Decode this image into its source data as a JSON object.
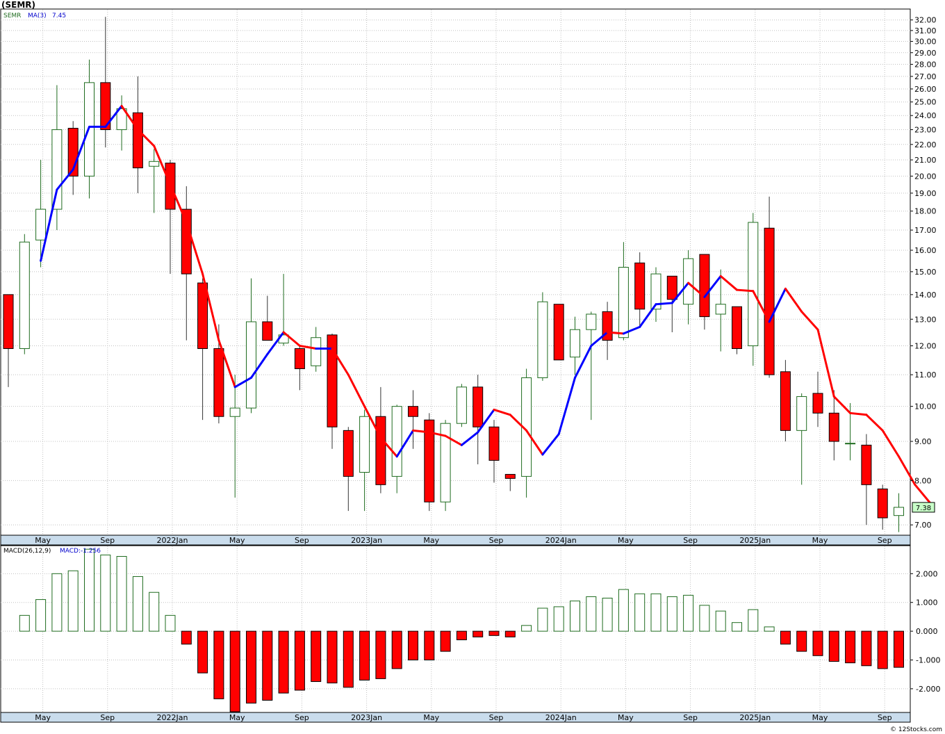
{
  "title": "(SEMR)",
  "watermark": "© 12Stocks.com",
  "price_panel": {
    "symbol_label": "SEMR",
    "ma_label": "MA(3)",
    "ma_value": "7.45",
    "last_price": "7.38"
  },
  "macd_panel": {
    "label": "MACD(26,12,9)",
    "value_label": "MACD:-1.256"
  },
  "colors": {
    "up_candle_outline": "#1e6b1e",
    "down_candle_fill": "#ff0000",
    "ma_up": "#0000ff",
    "ma_down": "#ff0000",
    "axis_band": "#c9dcec",
    "grid": "#c0c0c0",
    "last_price_box": "#c8ffc8"
  },
  "chart_data": [
    {
      "type": "candlestick",
      "title": "(SEMR)",
      "scale": "log",
      "ylim": [
        6.8,
        33.0
      ],
      "y_ticks": [
        7,
        8,
        9,
        10,
        11,
        12,
        13,
        14,
        15,
        16,
        17,
        18,
        19,
        20,
        21,
        22,
        23,
        24,
        25,
        26,
        27,
        28,
        29,
        30,
        31,
        32
      ],
      "y_tick_labels": [
        "7.00",
        "8.00",
        "9.00",
        "10.00",
        "11.00",
        "12.00",
        "13.00",
        "14.00",
        "15.00",
        "16.00",
        "17.00",
        "18.00",
        "19.00",
        "20.00",
        "21.00",
        "22.00",
        "23.00",
        "24.00",
        "25.00",
        "26.00",
        "27.00",
        "28.00",
        "29.00",
        "30.00",
        "31.00",
        "32.00"
      ],
      "x_labels": [
        {
          "index": 2,
          "label": "May"
        },
        {
          "index": 6,
          "label": "Sep"
        },
        {
          "index": 10,
          "label": "2022Jan"
        },
        {
          "index": 14,
          "label": "May"
        },
        {
          "index": 18,
          "label": "Sep"
        },
        {
          "index": 22,
          "label": "2023Jan"
        },
        {
          "index": 26,
          "label": "May"
        },
        {
          "index": 30,
          "label": "Sep"
        },
        {
          "index": 34,
          "label": "2024Jan"
        },
        {
          "index": 38,
          "label": "May"
        },
        {
          "index": 42,
          "label": "Sep"
        },
        {
          "index": 46,
          "label": "2025Jan"
        },
        {
          "index": 50,
          "label": "May"
        },
        {
          "index": 54,
          "label": "Sep"
        }
      ],
      "candles": [
        {
          "o": 14.0,
          "h": 14.0,
          "l": 10.6,
          "c": 11.9
        },
        {
          "o": 11.9,
          "h": 16.8,
          "l": 11.7,
          "c": 16.4
        },
        {
          "o": 16.5,
          "h": 21.0,
          "l": 15.2,
          "c": 18.1
        },
        {
          "o": 18.1,
          "h": 26.3,
          "l": 17.0,
          "c": 23.0
        },
        {
          "o": 23.1,
          "h": 23.6,
          "l": 18.9,
          "c": 20.0
        },
        {
          "o": 20.0,
          "h": 28.4,
          "l": 18.7,
          "c": 26.5
        },
        {
          "o": 26.5,
          "h": 32.3,
          "l": 21.8,
          "c": 23.0
        },
        {
          "o": 23.0,
          "h": 25.5,
          "l": 21.6,
          "c": 24.5
        },
        {
          "o": 24.2,
          "h": 27.0,
          "l": 19.0,
          "c": 20.5
        },
        {
          "o": 20.6,
          "h": 21.7,
          "l": 17.9,
          "c": 20.9
        },
        {
          "o": 20.8,
          "h": 21.0,
          "l": 14.9,
          "c": 18.1
        },
        {
          "o": 18.1,
          "h": 19.4,
          "l": 12.2,
          "c": 14.9
        },
        {
          "o": 14.5,
          "h": 14.7,
          "l": 9.6,
          "c": 11.9
        },
        {
          "o": 11.9,
          "h": 12.8,
          "l": 9.5,
          "c": 9.7
        },
        {
          "o": 9.7,
          "h": 11.0,
          "l": 7.6,
          "c": 9.95
        },
        {
          "o": 9.95,
          "h": 14.7,
          "l": 9.8,
          "c": 12.9
        },
        {
          "o": 12.9,
          "h": 13.95,
          "l": 12.2,
          "c": 12.2
        },
        {
          "o": 12.1,
          "h": 14.9,
          "l": 12.0,
          "c": 12.4
        },
        {
          "o": 11.9,
          "h": 12.0,
          "l": 10.5,
          "c": 11.2
        },
        {
          "o": 11.3,
          "h": 12.7,
          "l": 11.1,
          "c": 12.3
        },
        {
          "o": 12.4,
          "h": 12.45,
          "l": 8.8,
          "c": 9.4
        },
        {
          "o": 9.3,
          "h": 9.4,
          "l": 7.3,
          "c": 8.1
        },
        {
          "o": 8.2,
          "h": 9.9,
          "l": 7.3,
          "c": 9.7
        },
        {
          "o": 9.7,
          "h": 10.6,
          "l": 7.7,
          "c": 7.9
        },
        {
          "o": 8.1,
          "h": 10.05,
          "l": 7.7,
          "c": 10.0
        },
        {
          "o": 10.0,
          "h": 10.5,
          "l": 8.8,
          "c": 9.7
        },
        {
          "o": 9.6,
          "h": 9.8,
          "l": 7.3,
          "c": 7.5
        },
        {
          "o": 7.5,
          "h": 9.6,
          "l": 7.3,
          "c": 9.5
        },
        {
          "o": 9.5,
          "h": 10.7,
          "l": 9.4,
          "c": 10.6
        },
        {
          "o": 10.6,
          "h": 11.0,
          "l": 8.4,
          "c": 9.4
        },
        {
          "o": 9.4,
          "h": 9.6,
          "l": 7.95,
          "c": 8.5
        },
        {
          "o": 8.15,
          "h": 8.15,
          "l": 7.75,
          "c": 8.05
        },
        {
          "o": 8.1,
          "h": 11.2,
          "l": 7.6,
          "c": 10.9
        },
        {
          "o": 10.9,
          "h": 14.1,
          "l": 10.8,
          "c": 13.7
        },
        {
          "o": 13.6,
          "h": 13.6,
          "l": 11.5,
          "c": 11.5
        },
        {
          "o": 11.6,
          "h": 13.1,
          "l": 11.0,
          "c": 12.6
        },
        {
          "o": 12.6,
          "h": 13.3,
          "l": 9.6,
          "c": 13.2
        },
        {
          "o": 13.3,
          "h": 13.7,
          "l": 11.5,
          "c": 12.2
        },
        {
          "o": 12.3,
          "h": 16.4,
          "l": 12.2,
          "c": 15.2
        },
        {
          "o": 15.4,
          "h": 15.9,
          "l": 12.7,
          "c": 13.4
        },
        {
          "o": 13.4,
          "h": 15.2,
          "l": 12.9,
          "c": 14.9
        },
        {
          "o": 14.8,
          "h": 14.8,
          "l": 12.5,
          "c": 13.8
        },
        {
          "o": 13.6,
          "h": 16.0,
          "l": 12.8,
          "c": 15.6
        },
        {
          "o": 15.8,
          "h": 15.8,
          "l": 12.6,
          "c": 13.1
        },
        {
          "o": 13.2,
          "h": 15.1,
          "l": 11.8,
          "c": 13.6
        },
        {
          "o": 13.5,
          "h": 13.5,
          "l": 11.7,
          "c": 11.9
        },
        {
          "o": 12.0,
          "h": 17.9,
          "l": 11.3,
          "c": 17.4
        },
        {
          "o": 17.1,
          "h": 18.8,
          "l": 10.9,
          "c": 11.0
        },
        {
          "o": 11.1,
          "h": 11.5,
          "l": 9.0,
          "c": 9.3
        },
        {
          "o": 9.3,
          "h": 10.4,
          "l": 7.9,
          "c": 10.3
        },
        {
          "o": 10.4,
          "h": 11.1,
          "l": 9.4,
          "c": 9.8
        },
        {
          "o": 9.8,
          "h": 10.5,
          "l": 8.5,
          "c": 9.0
        },
        {
          "o": 8.95,
          "h": 10.1,
          "l": 8.5,
          "c": 8.95
        },
        {
          "o": 8.9,
          "h": 9.2,
          "l": 7.0,
          "c": 7.9
        },
        {
          "o": 7.8,
          "h": 7.9,
          "l": 6.9,
          "c": 7.15
        },
        {
          "o": 7.2,
          "h": 7.7,
          "l": 6.85,
          "c": 7.38
        }
      ],
      "ma3": {
        "label": "MA(3)",
        "start_index": 2,
        "values": [
          15.5,
          19.2,
          20.4,
          23.2,
          23.2,
          24.7,
          23.0,
          21.9,
          19.5,
          17.4,
          14.9,
          12.2,
          10.6,
          10.9,
          11.7,
          12.5,
          12.0,
          11.9,
          11.9,
          11.0,
          10.0,
          9.1,
          8.6,
          9.3,
          9.25,
          9.15,
          8.9,
          9.25,
          9.9,
          9.75,
          9.3,
          8.65,
          9.2,
          10.9,
          12.0,
          12.5,
          12.45,
          12.7,
          13.6,
          13.65,
          14.5,
          13.9,
          14.8,
          14.2,
          14.15,
          12.9,
          14.25,
          13.3,
          12.6,
          10.3,
          9.8,
          9.75,
          9.3,
          8.6,
          7.9,
          7.45
        ]
      }
    },
    {
      "type": "bar",
      "title": "MACD(26,12,9)",
      "ylim": [
        -2.8,
        2.95
      ],
      "y_ticks": [
        -2,
        -1,
        0,
        1,
        2
      ],
      "y_tick_labels": [
        "-2.000",
        "-1.000",
        "0.000",
        "1.000",
        "2.000"
      ],
      "start_index": 1,
      "values": [
        0.55,
        1.1,
        2.0,
        2.1,
        2.85,
        2.65,
        2.6,
        1.9,
        1.35,
        0.55,
        -0.45,
        -1.45,
        -2.35,
        -2.8,
        -2.5,
        -2.4,
        -2.15,
        -2.05,
        -1.75,
        -1.8,
        -1.95,
        -1.7,
        -1.65,
        -1.3,
        -1.0,
        -1.0,
        -0.7,
        -0.3,
        -0.2,
        -0.15,
        -0.2,
        0.2,
        0.8,
        0.85,
        1.05,
        1.2,
        1.15,
        1.45,
        1.3,
        1.3,
        1.2,
        1.25,
        0.9,
        0.7,
        0.3,
        0.75,
        0.15,
        -0.45,
        -0.7,
        -0.85,
        -1.05,
        -1.1,
        -1.2,
        -1.3,
        -1.256
      ]
    }
  ]
}
